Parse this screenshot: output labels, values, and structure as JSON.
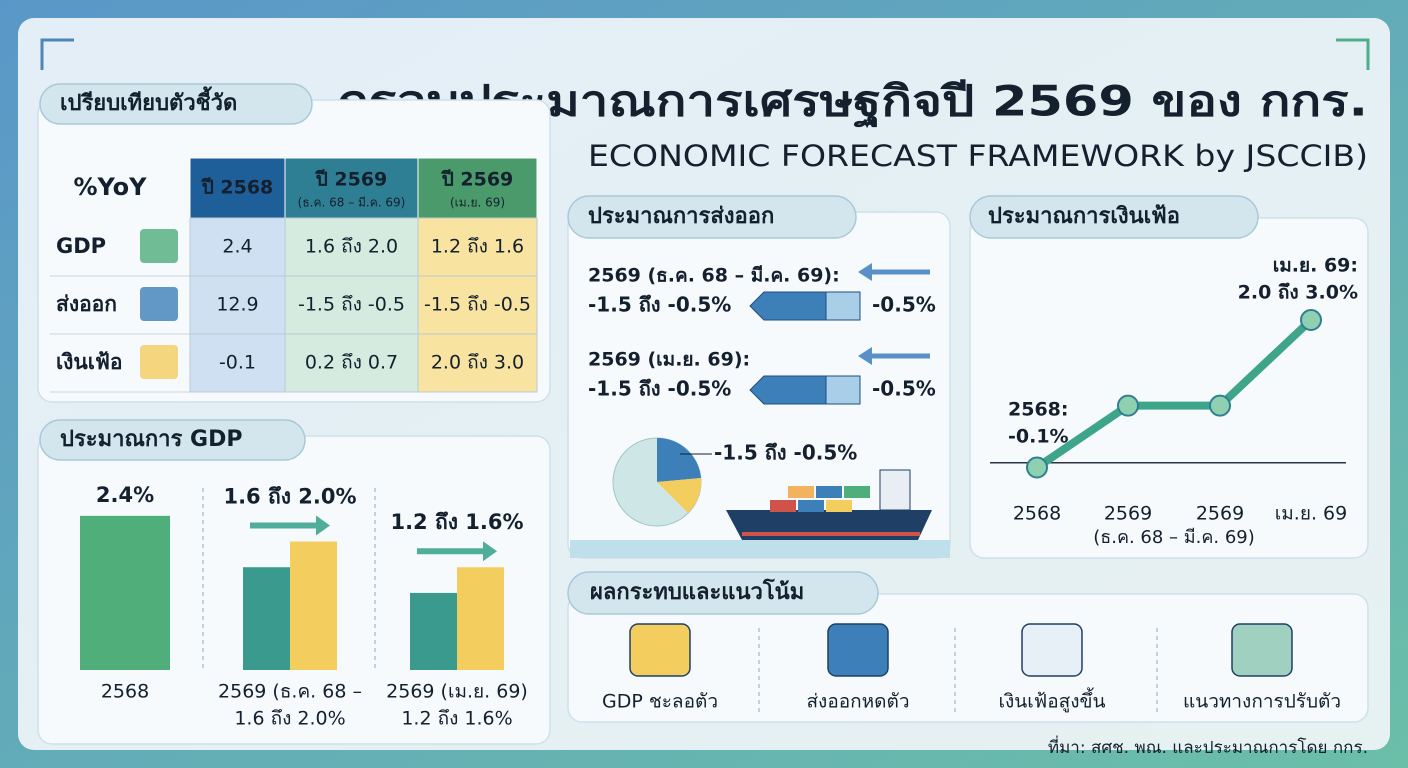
{
  "header": {
    "title": "กรอบประมาณการเศรษฐกิจปี 2569 ของ กกร.",
    "subtitle": "ECONOMIC FORECAST FRAMEWORK by JSCCIB)"
  },
  "comparison": {
    "title": "เปรียบเทียบตัวชี้วัด",
    "columns": [
      {
        "label": "%YoY"
      },
      {
        "label": "ปี 2568"
      },
      {
        "label": "ปี 2569",
        "note": "(ธ.ค. 68 – มี.ค. 69)"
      },
      {
        "label": "ปี 2569",
        "note": "(เม.ย. 69)"
      }
    ],
    "rows": [
      [
        "GDP",
        "2.4",
        "1.6 ถึง 2.0",
        "1.2 ถึง 1.6"
      ],
      [
        "ส่งออก",
        "12.9",
        "-1.5 ถึง -0.5",
        "-1.5 ถึง -0.5"
      ],
      [
        "เงินเฟ้อ",
        "-0.1",
        "0.2 ถึง 0.7",
        "2.0 ถึง 3.0"
      ]
    ]
  },
  "gdp_chart": {
    "type": "bar",
    "title": "ประมาณการ GDP",
    "ylim": [
      0,
      2.6
    ],
    "groups": [
      {
        "label": "2568",
        "values": [
          2.4
        ],
        "value_label": "2.4%",
        "colors": [
          "#4fae7a"
        ]
      },
      {
        "label": "2569 (ธ.ค. 68 –",
        "sublabel": "1.6 ถึง 2.0%",
        "values": [
          1.6,
          2.0
        ],
        "value_label": "1.6 ถึง 2.0%",
        "colors": [
          "#3a9a8e",
          "#f3cd5e"
        ]
      },
      {
        "label": "2569 (เม.ย. 69)",
        "sublabel": "1.2 ถึง 1.6%",
        "values": [
          1.2,
          1.6
        ],
        "value_label": "1.2 ถึง 1.6%",
        "colors": [
          "#3a9a8e",
          "#f3cd5e"
        ]
      }
    ]
  },
  "export": {
    "title": "ประมาณการส่งออก",
    "items": [
      {
        "label": "2569 (ธ.ค. 68 – มี.ค. 69):",
        "range": "-1.5 ถึง -0.5%",
        "end": "-0.5%"
      },
      {
        "label": "2569 (เม.ย. 69):",
        "range": "-1.5 ถึง -0.5%",
        "end": "-0.5%"
      }
    ],
    "pie_label": "-1.5 ถึง -0.5%"
  },
  "inflation_chart": {
    "type": "line",
    "title": "ประมาณการเงินเฟ้อ",
    "categories": [
      "2568",
      "2569",
      "2569",
      "เม.ย. 69"
    ],
    "x_note": "(ธ.ค. 68 – มี.ค. 69)",
    "values": [
      -0.1,
      1.2,
      1.2,
      3.0
    ],
    "ylim": [
      -0.3,
      3.0
    ],
    "color": "#3fa58a",
    "point_labels": [
      [
        "2568:",
        "-0.1%"
      ],
      null,
      null,
      [
        "เม.ย. 69:",
        "2.0 ถึง 3.0%"
      ]
    ]
  },
  "impacts": {
    "title": "ผลกระทบและแนวโน้ม",
    "items": [
      "GDP ชะลอตัว",
      "ส่งออกหดตัว",
      "เงินเฟ้อสูงขึ้น",
      "แนวทางการปรับตัว"
    ]
  },
  "source": "ที่มา: สศช. พณ. และประมาณการโดย กกร."
}
